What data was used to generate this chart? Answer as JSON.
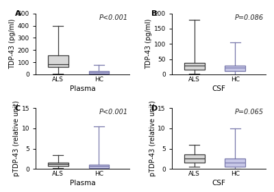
{
  "panels": [
    {
      "label": "A",
      "xlabel": "Plasma",
      "ylabel": "TDP-43 (pg/ml)",
      "pvalue": "P<0.001",
      "ylim": [
        0,
        500
      ],
      "yticks": [
        0,
        100,
        200,
        300,
        400,
        500
      ],
      "groups": [
        {
          "name": "ALS",
          "color": "#d8d8d8",
          "edgecolor": "#3a3a3a",
          "median": 85,
          "q1": 62,
          "q3": 155,
          "whislo": 8,
          "whishi": 395
        },
        {
          "name": "HC",
          "color": "#c8c8e8",
          "edgecolor": "#7777aa",
          "median": 18,
          "q1": 8,
          "q3": 28,
          "whislo": 3,
          "whishi": 78
        }
      ]
    },
    {
      "label": "B",
      "xlabel": "CSF",
      "ylabel": "TDP-43 (pg/ml)",
      "pvalue": "P=0.086",
      "ylim": [
        0,
        200
      ],
      "yticks": [
        0,
        50,
        100,
        150,
        200
      ],
      "groups": [
        {
          "name": "ALS",
          "color": "#d8d8d8",
          "edgecolor": "#3a3a3a",
          "median": 28,
          "q1": 16,
          "q3": 38,
          "whislo": 2,
          "whishi": 178
        },
        {
          "name": "HC",
          "color": "#c8c8e8",
          "edgecolor": "#7777aa",
          "median": 22,
          "q1": 12,
          "q3": 30,
          "whislo": 0,
          "whishi": 105
        }
      ]
    },
    {
      "label": "C",
      "xlabel": "Plasma",
      "ylabel": "pTDP-43 (relative unit)",
      "pvalue": "P<0.001",
      "ylim": [
        0,
        15
      ],
      "yticks": [
        0,
        5,
        10,
        15
      ],
      "groups": [
        {
          "name": "ALS",
          "color": "#d8d8d8",
          "edgecolor": "#3a3a3a",
          "median": 1.15,
          "q1": 0.8,
          "q3": 1.55,
          "whislo": 0.2,
          "whishi": 3.4
        },
        {
          "name": "HC",
          "color": "#c8c8e8",
          "edgecolor": "#7777aa",
          "median": 0.65,
          "q1": 0.15,
          "q3": 1.0,
          "whislo": 0.0,
          "whishi": 10.5
        }
      ]
    },
    {
      "label": "D",
      "xlabel": "CSF",
      "ylabel": "pTDP-43 (relative unit)",
      "pvalue": "P=0.065",
      "ylim": [
        0,
        15
      ],
      "yticks": [
        0,
        5,
        10,
        15
      ],
      "groups": [
        {
          "name": "ALS",
          "color": "#d8d8d8",
          "edgecolor": "#3a3a3a",
          "median": 2.5,
          "q1": 1.5,
          "q3": 3.5,
          "whislo": 0.5,
          "whishi": 6.0
        },
        {
          "name": "HC",
          "color": "#c8c8e8",
          "edgecolor": "#7777aa",
          "median": 1.5,
          "q1": 0.5,
          "q3": 2.5,
          "whislo": 0.0,
          "whishi": 10.0
        }
      ]
    }
  ],
  "background_color": "#ffffff",
  "box_width": 0.5,
  "linewidth": 0.9,
  "pvalue_fontsize": 7,
  "label_fontsize": 8,
  "tick_fontsize": 6.5,
  "ylabel_fontsize": 7,
  "xlabel_fontsize": 7.5
}
